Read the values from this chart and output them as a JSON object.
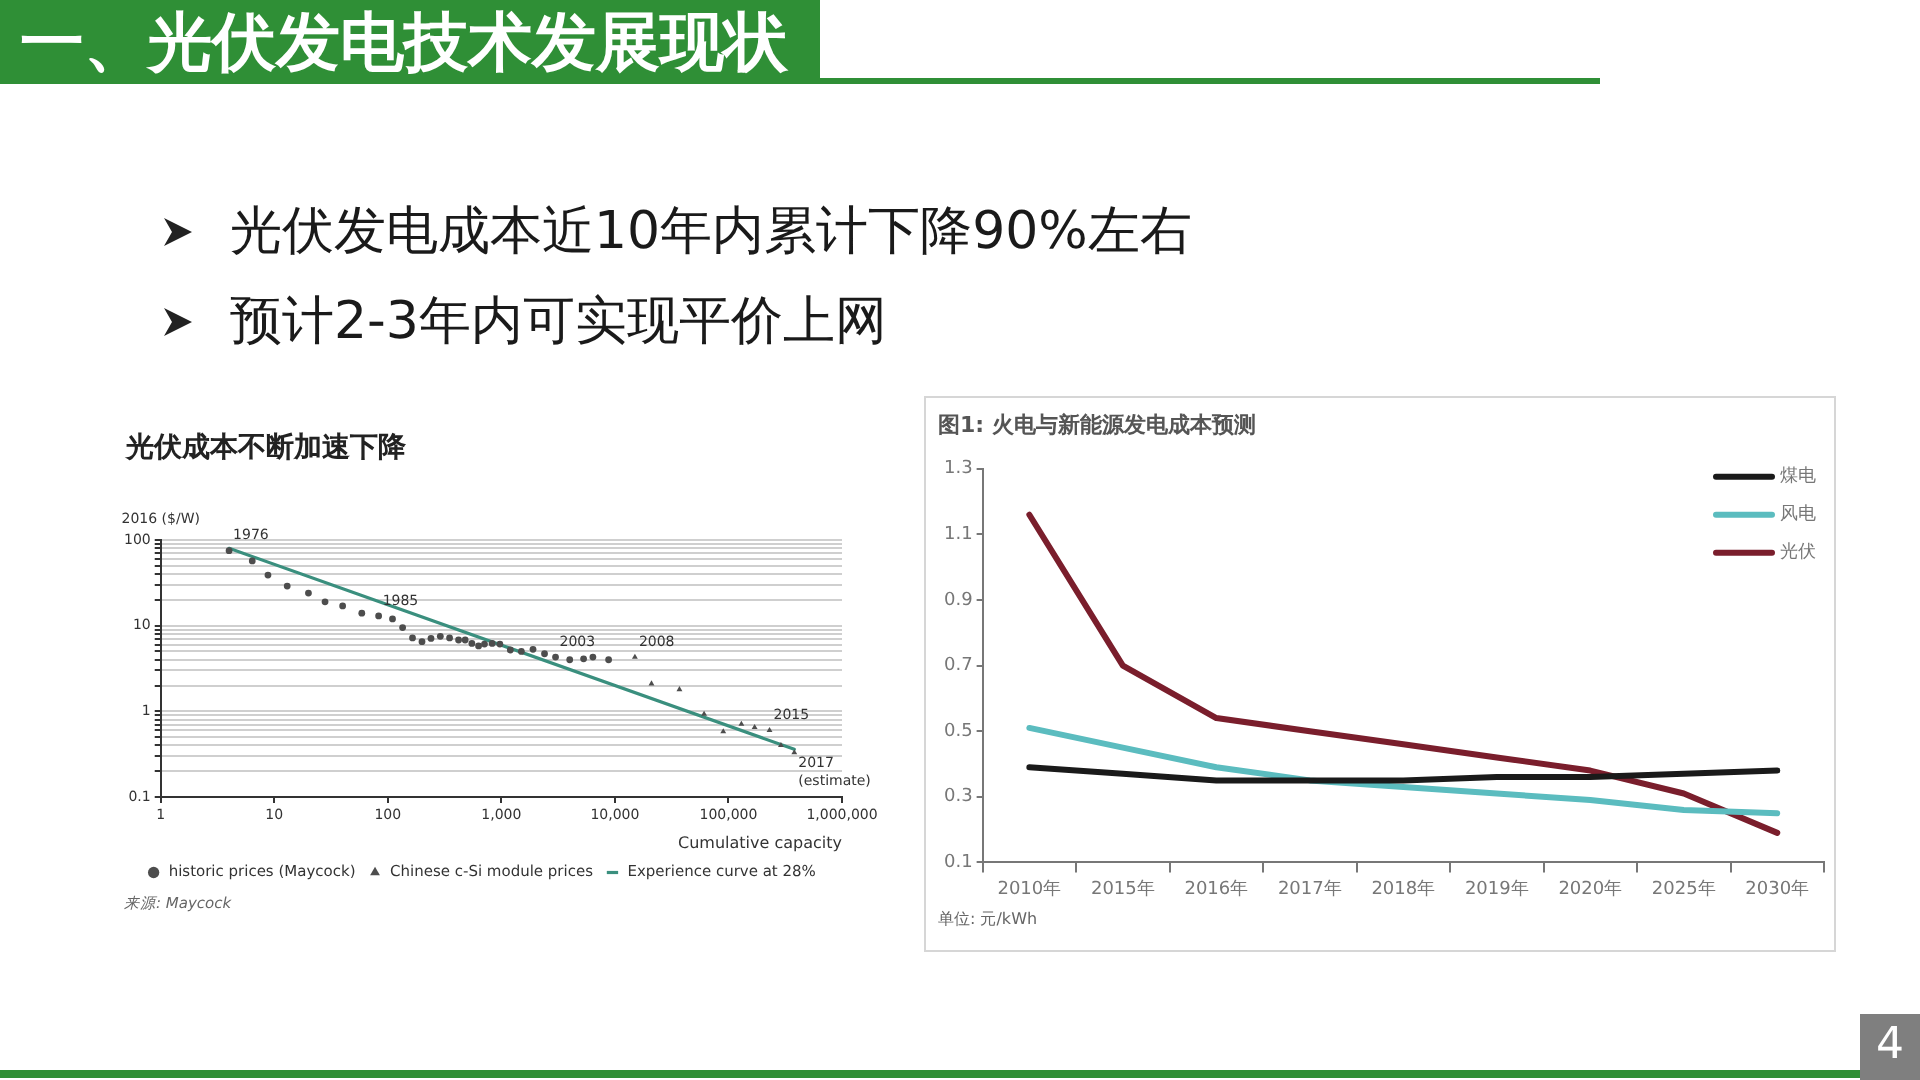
{
  "chart_data": [
    {
      "type": "other",
      "title": "一、光伏发电技术发展现状",
      "annotations": [
        "光伏发电成本近10年内累计下降90%左右",
        "预计2-3年内可实现平价上网",
        "4"
      ]
    },
    {
      "type": "scatter",
      "title": "光伏成本不断加速下降",
      "xlabel": "Cumulative capacity",
      "ylabel": "2016 ($/W)",
      "log": "xy",
      "xlim": [
        1,
        1000000
      ],
      "xticks": [
        1,
        10,
        100,
        {
          "value": 1000,
          "label": "1,000"
        },
        {
          "value": 10000,
          "label": "10,000"
        },
        {
          "value": 100000,
          "label": "100,000"
        },
        {
          "value": 1000000,
          "label": "1,000,000"
        }
      ],
      "ylim": [
        0.1,
        100
      ],
      "yticks": [
        0.1,
        {
          "value": 0.2,
          "label": null
        },
        {
          "value": 0.3,
          "label": null
        },
        {
          "value": 0.4,
          "label": null
        },
        {
          "value": 0.5,
          "label": null
        },
        {
          "value": 0.6,
          "label": null
        },
        {
          "value": 0.7,
          "label": null
        },
        {
          "value": 0.8,
          "label": null
        },
        {
          "value": 0.9,
          "label": null
        },
        1,
        {
          "value": 2,
          "label": null
        },
        {
          "value": 3,
          "label": null
        },
        {
          "value": 4,
          "label": null
        },
        {
          "value": 5,
          "label": null
        },
        {
          "value": 6,
          "label": null
        },
        {
          "value": 7,
          "label": null
        },
        {
          "value": 8,
          "label": null
        },
        {
          "value": 9,
          "label": null
        },
        10,
        {
          "value": 20,
          "label": null
        },
        {
          "value": 30,
          "label": null
        },
        {
          "value": 40,
          "label": null
        },
        {
          "value": 50,
          "label": null
        },
        {
          "value": 60,
          "label": null
        },
        {
          "value": 70,
          "label": null
        },
        {
          "value": 80,
          "label": null
        },
        {
          "value": 90,
          "label": null
        },
        100
      ],
      "grid": "y",
      "legend": "bottom",
      "series": [
        {
          "name": "historic prices (Maycock)",
          "color": "#4d4d4d",
          "marker": "circle",
          "x": [
            4,
            6.4,
            8.8,
            13,
            20,
            28,
            40,
            59,
            83,
            110,
            135,
            165,
            200,
            240,
            290,
            350,
            420,
            480,
            550,
            630,
            710,
            830,
            970,
            1200,
            1500,
            1900,
            2400,
            3000,
            4000,
            5300,
            6400,
            8800
          ],
          "values": [
            75,
            57,
            39,
            29,
            24,
            19,
            17,
            14,
            13,
            12,
            9.5,
            7.2,
            6.5,
            7.1,
            7.5,
            7.2,
            6.8,
            6.8,
            6.2,
            5.8,
            6.1,
            6.2,
            6.1,
            5.2,
            5.0,
            5.3,
            4.7,
            4.3,
            4.0,
            4.1,
            4.3,
            4.0
          ]
        },
        {
          "name": "Chinese c-Si module prices",
          "color": "#4d4d4d",
          "marker": "triangle",
          "x": [
            15000,
            21000,
            37000,
            61000,
            90000,
            130000,
            170000,
            230000,
            290000,
            380000
          ],
          "values": [
            4.3,
            2.1,
            1.8,
            0.93,
            0.58,
            0.71,
            0.65,
            0.6,
            0.4,
            0.33
          ]
        },
        {
          "name": "Experience curve at 28%",
          "type": "line",
          "color": "#3a8f7e",
          "marker": "none",
          "x": [
            4,
            380000
          ],
          "values": [
            80,
            0.36
          ]
        }
      ],
      "annotations": [
        {
          "text": "1976",
          "x": 4,
          "y": 75
        },
        {
          "text": "1985",
          "x": 83,
          "y": 13
        },
        {
          "text": "2003",
          "x": 3000,
          "y": 4.3
        },
        {
          "text": "2008",
          "x": 15000,
          "y": 4.3
        },
        {
          "text": "2015",
          "x": 230000,
          "y": 0.6
        },
        {
          "text": "2017\n(estimate)",
          "x": 380000,
          "y": 0.33
        },
        "来源: Maycock"
      ]
    },
    {
      "type": "line",
      "title": "图1: 火电与新能源发电成本预测",
      "categories": [
        "2010年",
        "2015年",
        "2016年",
        "2017年",
        "2018年",
        "2019年",
        "2020年",
        "2025年",
        "2030年"
      ],
      "ylim": [
        0.1,
        1.3
      ],
      "yticks": [
        0.1,
        0.3,
        0.5,
        0.7,
        0.9,
        1.1,
        1.3
      ],
      "legend": "top right",
      "marker": "none",
      "series": [
        {
          "name": "煤电",
          "color": "#1a1a1a",
          "values": [
            0.39,
            0.37,
            0.35,
            0.35,
            0.35,
            0.36,
            0.36,
            0.37,
            0.38
          ]
        },
        {
          "name": "风电",
          "color": "#5bbcbf",
          "values": [
            0.51,
            0.45,
            0.39,
            0.35,
            0.33,
            0.31,
            0.29,
            0.26,
            0.25
          ]
        },
        {
          "name": "光伏",
          "color": "#7a1e2c",
          "values": [
            1.16,
            0.7,
            0.54,
            0.5,
            0.46,
            0.42,
            0.38,
            0.31,
            0.19
          ]
        }
      ],
      "annotations": [
        "单位: 元/kWh"
      ]
    }
  ]
}
